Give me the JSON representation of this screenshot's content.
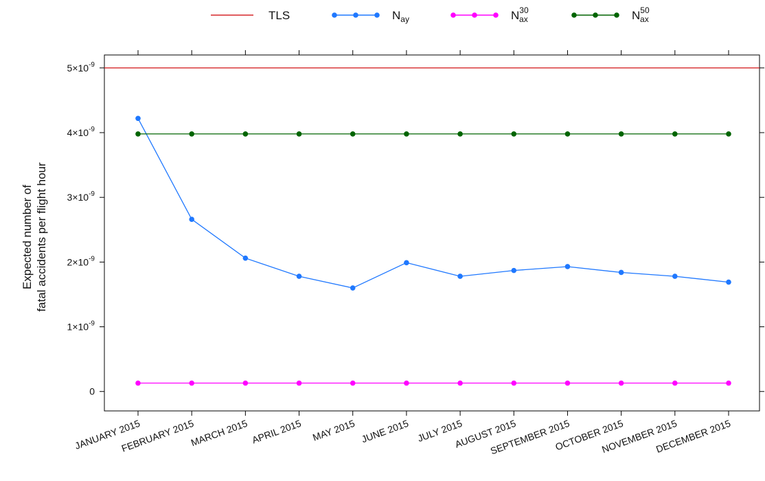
{
  "chart_data": {
    "type": "line",
    "ylabel_lines": [
      "Expected number of",
      "fatal accidents per flight hour"
    ],
    "categories": [
      "JANUARY 2015",
      "FEBRUARY 2015",
      "MARCH 2015",
      "APRIL 2015",
      "MAY 2015",
      "JUNE 2015",
      "JULY 2015",
      "AUGUST 2015",
      "SEPTEMBER 2015",
      "OCTOBER 2015",
      "NOVEMBER 2015",
      "DECEMBER 2015"
    ],
    "ylim": [
      -3e-10,
      5.2e-09
    ],
    "y_ticks": [
      0,
      1e-09,
      2e-09,
      3e-09,
      4e-09,
      5e-09
    ],
    "y_tick_labels": [
      {
        "main": "0",
        "exp": ""
      },
      {
        "main": "1×10",
        "exp": "-9"
      },
      {
        "main": "2×10",
        "exp": "-9"
      },
      {
        "main": "3×10",
        "exp": "-9"
      },
      {
        "main": "4×10",
        "exp": "-9"
      },
      {
        "main": "5×10",
        "exp": "-9"
      }
    ],
    "legend_position": "top",
    "series": [
      {
        "name": "TLS",
        "color": "#d62728",
        "kind": "hline",
        "value": 5e-09,
        "legend_base": "TLS",
        "legend_sub": "",
        "legend_sup": ""
      },
      {
        "name": "N_ay",
        "color": "#1f78ff",
        "kind": "line-markers",
        "legend_base": "N",
        "legend_sub": "ay",
        "legend_sup": "",
        "values": [
          4.22e-09,
          2.66e-09,
          2.06e-09,
          1.78e-09,
          1.6e-09,
          1.99e-09,
          1.78e-09,
          1.87e-09,
          1.93e-09,
          1.84e-09,
          1.78e-09,
          1.69e-09
        ]
      },
      {
        "name": "N_ax^30",
        "color": "#ff00ff",
        "kind": "line-markers",
        "legend_base": "N",
        "legend_sub": "ax",
        "legend_sup": "30",
        "values": [
          1.3e-10,
          1.3e-10,
          1.3e-10,
          1.3e-10,
          1.3e-10,
          1.3e-10,
          1.3e-10,
          1.3e-10,
          1.3e-10,
          1.3e-10,
          1.3e-10,
          1.3e-10
        ]
      },
      {
        "name": "N_ax^50",
        "color": "#006400",
        "kind": "line-markers",
        "legend_base": "N",
        "legend_sub": "ax",
        "legend_sup": "50",
        "values": [
          3.98e-09,
          3.98e-09,
          3.98e-09,
          3.98e-09,
          3.98e-09,
          3.98e-09,
          3.98e-09,
          3.98e-09,
          3.98e-09,
          3.98e-09,
          3.98e-09,
          3.98e-09
        ]
      }
    ]
  }
}
